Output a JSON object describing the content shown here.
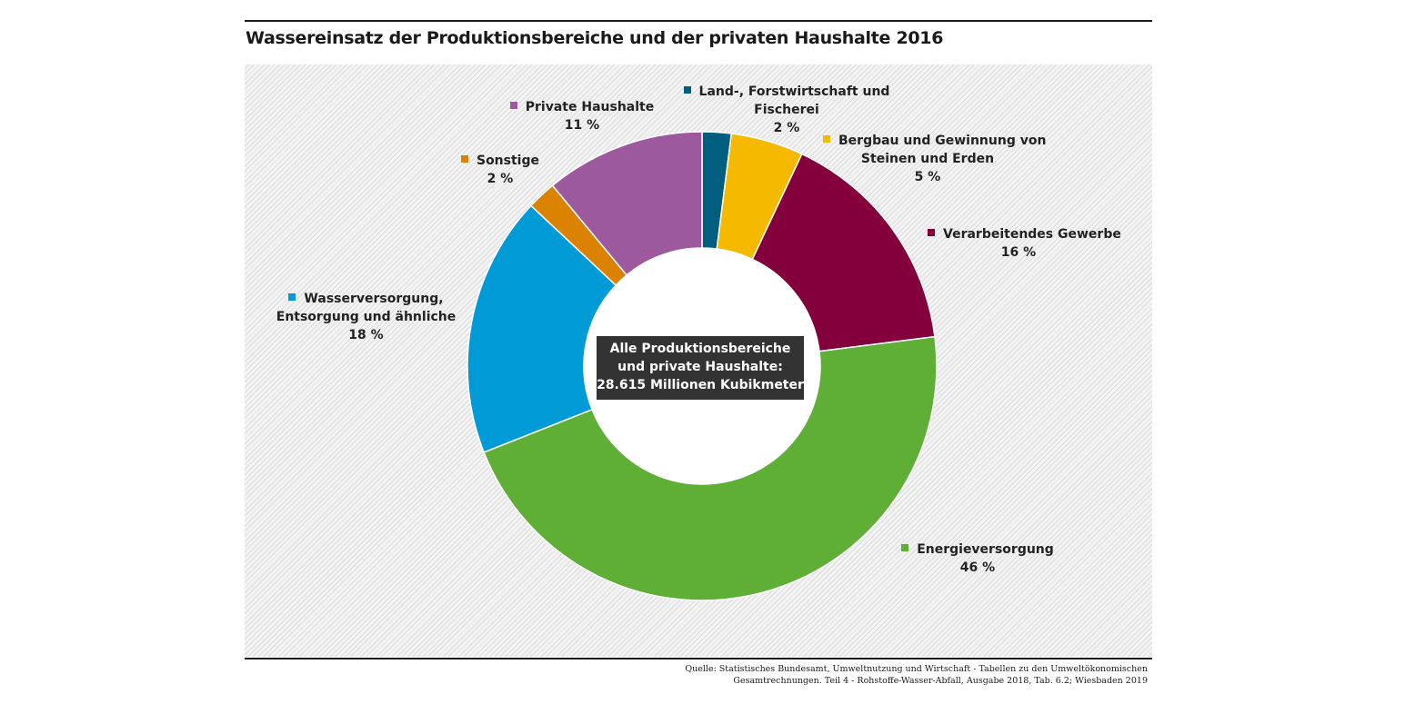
{
  "title": "Wassereinsatz der Produktionsbereiche und der privaten Haushalte 2016",
  "source_line1": "Quelle: Statistisches Bundesamt, Umweltnutzung und Wirtschaft - Tabellen zu den Umweltökonomischen",
  "source_line2": "Gesamtrechnungen. Teil 4 - Rohstoffe-Wasser-Abfall, Ausgabe 2018, Tab. 6.2; Wiesbaden 2019",
  "center_box": {
    "line1": "Alle Produktionsbereiche",
    "line2": "und private Haushalte:",
    "line3": "28.615 Millionen Kubikmeter"
  },
  "chart_data": {
    "type": "pie",
    "variant": "donut",
    "title": "Wassereinsatz der Produktionsbereiche und der privaten Haushalte 2016",
    "unit": "%",
    "slices": [
      {
        "key": "land",
        "name_lines": [
          "Land-, Forstwirtschaft und",
          "Fischerei"
        ],
        "value": 2,
        "value_label": "2 %",
        "color": "#005F7F"
      },
      {
        "key": "bergbau",
        "name_lines": [
          "Bergbau und Gewinnung von",
          "Steinen und Erden"
        ],
        "value": 5,
        "value_label": "5 %",
        "color": "#F5BA00"
      },
      {
        "key": "gewerbe",
        "name_lines": [
          "Verarbeitendes Gewerbe"
        ],
        "value": 16,
        "value_label": "16 %",
        "color": "#84003C"
      },
      {
        "key": "energie",
        "name_lines": [
          "Energieversorgung"
        ],
        "value": 46,
        "value_label": "46 %",
        "color": "#5FAE36"
      },
      {
        "key": "wasser",
        "name_lines": [
          "Wasserversorgung,",
          "Entsorgung und ähnliche"
        ],
        "value": 18,
        "value_label": "18 %",
        "color": "#009BD6"
      },
      {
        "key": "sonstige",
        "name_lines": [
          "Sonstige"
        ],
        "value": 2,
        "value_label": "2 %",
        "color": "#DB8200"
      },
      {
        "key": "haushalte",
        "name_lines": [
          "Private Haushalte"
        ],
        "value": 11,
        "value_label": "11 %",
        "color": "#9C599D"
      }
    ]
  }
}
